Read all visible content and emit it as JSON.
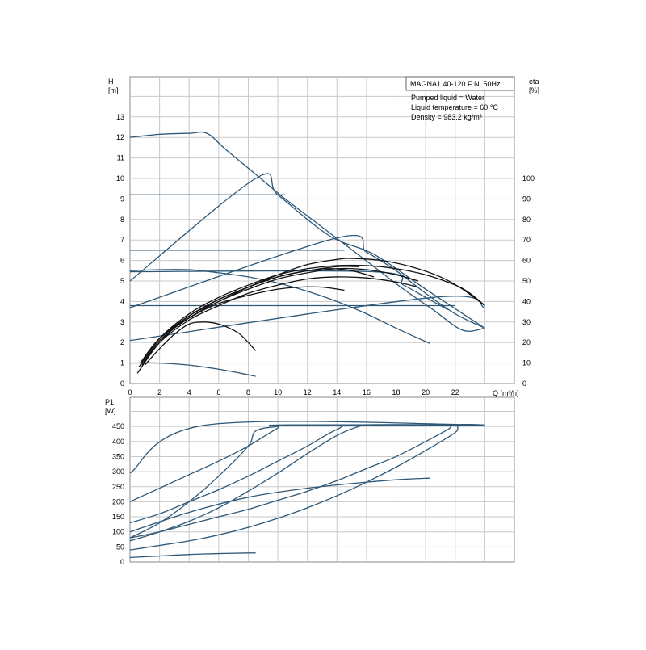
{
  "chart_data": [
    {
      "type": "line",
      "title": "MAGNA1 40-120 F N, 50Hz",
      "annotations": [
        "Pumped liquid = Water",
        "Liquid temperature = 60 °C",
        "Density = 983.2 kg/m³"
      ],
      "xlabel": "Q [m³/h]",
      "ylabel": "H\n[m]",
      "y2label": "eta\n[%]",
      "xlim": [
        0,
        26
      ],
      "ylim": [
        0,
        14
      ],
      "y2lim": [
        0,
        100
      ],
      "xticks": [
        "0",
        "2",
        "4",
        "6",
        "8",
        "10",
        "12",
        "14",
        "16",
        "18",
        "20",
        "22"
      ],
      "xtick_label_Q": "Q",
      "yticks": [
        "0",
        "1",
        "2",
        "3",
        "4",
        "5",
        "6",
        "7",
        "8",
        "9",
        "10",
        "11",
        "12",
        "13"
      ],
      "y2ticks": [
        "0",
        "10",
        "20",
        "30",
        "40",
        "50",
        "60",
        "70",
        "80",
        "90",
        "100"
      ],
      "grid": true,
      "colors": {
        "head": "#2d5878",
        "efficiency": "#111111"
      },
      "head_series": [
        {
          "x": [
            0,
            2,
            4,
            5.2,
            6.5,
            9,
            10.5,
            12.5,
            14.5,
            16.5,
            18.5,
            20.5,
            22.5,
            24
          ],
          "y": [
            12,
            12.15,
            12.2,
            12.2,
            11.4,
            9.9,
            9,
            7.9,
            6.8,
            5.7,
            4.6,
            3.6,
            2.6,
            2.7
          ]
        },
        {
          "x": [
            0,
            10.5
          ],
          "y": [
            9.2,
            9.2
          ]
        },
        {
          "x": [
            0,
            8.5,
            10,
            13.5,
            16.5,
            20,
            24
          ],
          "y": [
            5,
            10,
            9.2,
            7.2,
            6.3,
            4.6,
            2.7
          ]
        },
        {
          "x": [
            0,
            14.5
          ],
          "y": [
            6.5,
            6.5
          ]
        },
        {
          "x": [
            0,
            14,
            16,
            18,
            20,
            22,
            24
          ],
          "y": [
            3.7,
            7.1,
            6.4,
            5.5,
            4.4,
            3.4,
            2.7
          ]
        },
        {
          "x": [
            0,
            16,
            22
          ],
          "y": [
            3.8,
            3.8,
            3.8
          ]
        },
        {
          "x": [
            0,
            20.5,
            24
          ],
          "y": [
            2.1,
            4.2,
            3.7
          ]
        },
        {
          "x": [
            0,
            2,
            4,
            6,
            8,
            10,
            12,
            14,
            16,
            18,
            20.3
          ],
          "y": [
            5.5,
            5.55,
            5.55,
            5.4,
            5.2,
            4.9,
            4.5,
            4.0,
            3.4,
            2.7,
            1.95
          ]
        },
        {
          "x": [
            0,
            2,
            4,
            6,
            7.5,
            8.5
          ],
          "y": [
            1.0,
            1.0,
            0.9,
            0.7,
            0.5,
            0.35
          ]
        },
        {
          "x": [
            0,
            16.5,
            18.5,
            20,
            21.5
          ],
          "y": [
            5.45,
            5.45,
            4.8,
            4.2,
            3.6
          ]
        }
      ],
      "efficiency_series": [
        {
          "x": [
            0.5,
            2,
            4,
            6,
            8,
            10,
            12,
            14,
            15,
            17,
            19,
            21,
            22.5,
            24
          ],
          "y": [
            5,
            20,
            33,
            40,
            47,
            53,
            58,
            60.5,
            61,
            60,
            57,
            52,
            46,
            38
          ]
        },
        {
          "x": [
            0.6,
            2,
            4,
            6,
            8,
            10,
            12,
            14,
            16,
            18,
            20,
            22,
            23,
            24
          ],
          "y": [
            8,
            22,
            34,
            42,
            48,
            53,
            56,
            57.5,
            57.5,
            56,
            53,
            48,
            44,
            38
          ]
        },
        {
          "x": [
            0.7,
            2,
            4,
            6,
            8,
            10,
            12,
            13.5,
            15,
            16.5
          ],
          "y": [
            10,
            22,
            33,
            41,
            47,
            52,
            55,
            56,
            55,
            52
          ]
        },
        {
          "x": [
            0.8,
            2,
            4,
            6,
            8,
            10,
            12,
            14,
            16,
            18,
            19.5
          ],
          "y": [
            9,
            20,
            31,
            38,
            44,
            48,
            51,
            52,
            51.5,
            49.5,
            47
          ]
        },
        {
          "x": [
            0.8,
            2,
            4,
            6,
            8,
            10,
            11.5,
            13,
            14.5
          ],
          "y": [
            11,
            22,
            32,
            39,
            43,
            46,
            47,
            47,
            45.5
          ]
        },
        {
          "x": [
            1,
            2,
            3,
            4,
            5,
            6,
            7,
            7.6,
            8.5
          ],
          "y": [
            9,
            17,
            24,
            29,
            30,
            29,
            26,
            23,
            16
          ]
        },
        {
          "x": [
            0.9,
            2,
            4,
            6,
            8,
            10,
            12,
            14,
            15.5
          ],
          "y": [
            11,
            22,
            33,
            41,
            47,
            52,
            55,
            57,
            57
          ]
        },
        {
          "x": [
            0.8,
            2,
            4,
            6,
            8,
            10,
            12,
            14,
            16,
            18,
            19.5
          ],
          "y": [
            9,
            21,
            32,
            40,
            46,
            51,
            54,
            56,
            55.5,
            53,
            50
          ]
        }
      ]
    },
    {
      "type": "line",
      "ylabel": "P1\n[W]",
      "xlim": [
        0,
        26
      ],
      "ylim": [
        0,
        500
      ],
      "yticks": [
        "0",
        "50",
        "100",
        "150",
        "200",
        "250",
        "300",
        "350",
        "400",
        "450"
      ],
      "grid": true,
      "colors": {
        "power": "#2d5878"
      },
      "power_series": [
        {
          "x": [
            0,
            5.2,
            24
          ],
          "y": [
            295,
            455,
            455
          ]
        },
        {
          "x": [
            0,
            2,
            4,
            6,
            8,
            10,
            10.5,
            24
          ],
          "y": [
            200,
            245,
            290,
            335,
            385,
            445,
            455,
            455
          ]
        },
        {
          "x": [
            0,
            2,
            4,
            6,
            8,
            8.5,
            10,
            11,
            24
          ],
          "y": [
            80,
            130,
            200,
            285,
            385,
            435,
            450,
            455,
            455
          ]
        },
        {
          "x": [
            0,
            2,
            4,
            6,
            8,
            10,
            12,
            14,
            15.5,
            24
          ],
          "y": [
            130,
            160,
            200,
            240,
            285,
            335,
            385,
            440,
            455,
            455
          ]
        },
        {
          "x": [
            0,
            2,
            4,
            6,
            8,
            10,
            12,
            14,
            15.5,
            16.5,
            24
          ],
          "y": [
            70,
            100,
            135,
            180,
            235,
            295,
            360,
            420,
            450,
            455,
            455
          ]
        },
        {
          "x": [
            0,
            2,
            4,
            6,
            8,
            10,
            12,
            14,
            16,
            18,
            20,
            21.5,
            22,
            24
          ],
          "y": [
            80,
            100,
            125,
            150,
            175,
            205,
            235,
            270,
            310,
            350,
            400,
            440,
            455,
            455
          ]
        },
        {
          "x": [
            0,
            2,
            4,
            6,
            8,
            10,
            12,
            14,
            16,
            18,
            20,
            22,
            22.3,
            24
          ],
          "y": [
            40,
            55,
            70,
            90,
            115,
            145,
            180,
            220,
            265,
            315,
            370,
            430,
            455,
            455
          ]
        },
        {
          "x": [
            0,
            4,
            8,
            12,
            16,
            18,
            20,
            20.3
          ],
          "y": [
            100,
            165,
            215,
            245,
            265,
            273,
            278,
            278
          ]
        },
        {
          "x": [
            0,
            2,
            4,
            6,
            8,
            8.5
          ],
          "y": [
            15,
            20,
            25,
            28,
            30,
            30
          ]
        }
      ]
    }
  ]
}
